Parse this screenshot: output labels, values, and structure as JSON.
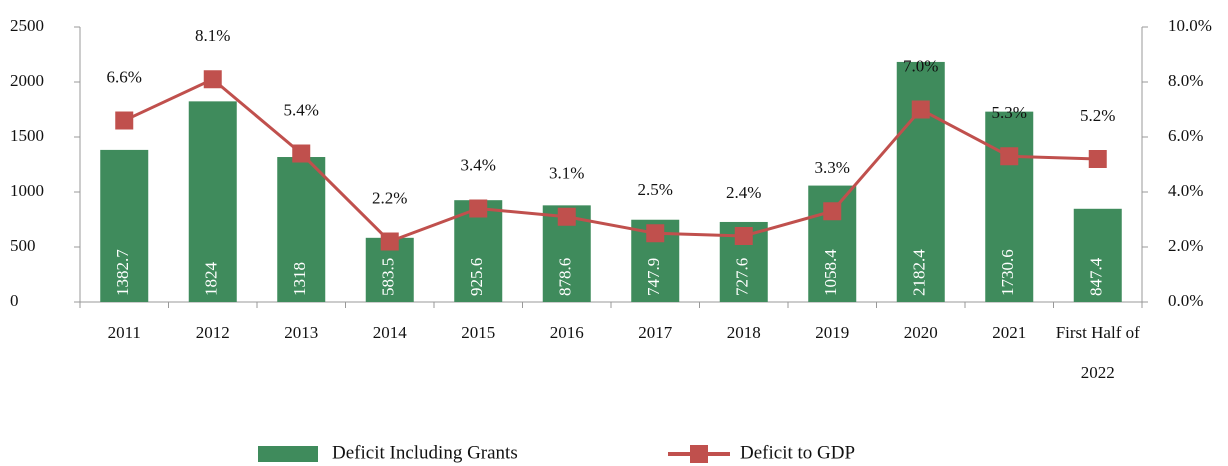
{
  "chart_data": {
    "type": "bar",
    "categories": [
      "2011",
      "2012",
      "2013",
      "2014",
      "2015",
      "2016",
      "2017",
      "2018",
      "2019",
      "2020",
      "2021",
      "First Half of 2022"
    ],
    "series": [
      {
        "name": "Deficit Including Grants",
        "type": "bar",
        "color": "#3f8b5c",
        "values": [
          1382.7,
          1824,
          1318,
          583.5,
          925.6,
          878.6,
          747.9,
          727.6,
          1058.4,
          2182.4,
          1730.6,
          847.4
        ]
      },
      {
        "name": "Deficit to GDP",
        "type": "line",
        "axis": "y2",
        "color": "#c0504d",
        "values": [
          6.6,
          8.1,
          5.4,
          2.2,
          3.4,
          3.1,
          2.5,
          2.4,
          3.3,
          7.0,
          5.3,
          5.2
        ],
        "value_labels": [
          "6.6%",
          "8.1%",
          "5.4%",
          "2.2%",
          "3.4%",
          "3.1%",
          "2.5%",
          "2.4%",
          "3.3%",
          "7.0%",
          "5.3%",
          "5.2%"
        ]
      }
    ],
    "ylim": [
      0,
      2500
    ],
    "yticks": [
      0,
      500,
      1000,
      1500,
      2000,
      2500
    ],
    "y2lim": [
      0,
      10
    ],
    "y2ticks": [
      {
        "value": 0,
        "label": "0.0%"
      },
      {
        "value": 2,
        "label": "2.0%"
      },
      {
        "value": 4,
        "label": "4.0%"
      },
      {
        "value": 6,
        "label": "6.0%"
      },
      {
        "value": 8,
        "label": "8.0%"
      },
      {
        "value": 10,
        "label": "10.0%"
      }
    ],
    "legend": "bottom"
  }
}
